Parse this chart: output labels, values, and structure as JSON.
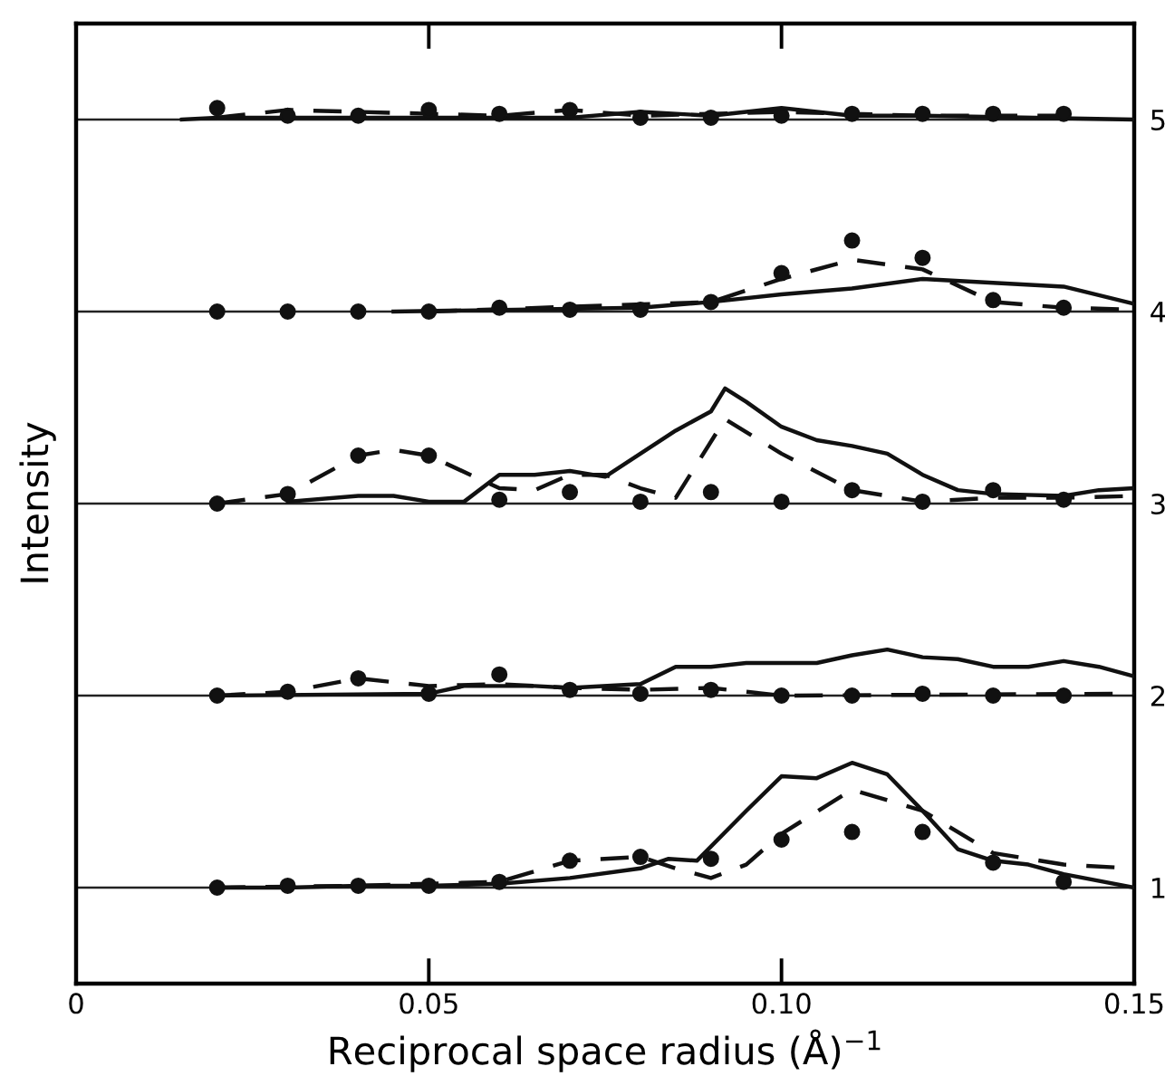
{
  "chart_data": {
    "type": "line",
    "xlabel": "Reciprocal space radius (Å)$^{−1}$",
    "ylabel": "Intensity",
    "xlim": [
      0,
      0.15
    ],
    "xticks": [
      0,
      0.05,
      {
        "value": 0.1,
        "label": "0.10"
      },
      0.15
    ],
    "ylim": [
      0.5,
      5.5
    ],
    "yticks": [
      1,
      2,
      3,
      4,
      5
    ],
    "grid": "y",
    "legend": false,
    "series": [
      {
        "line_style": "solid",
        "color": "#111111",
        "x": [
          0.02,
          0.03,
          0.04,
          0.05,
          0.06,
          0.07,
          0.08,
          0.084,
          0.088,
          0.095,
          0.1,
          0.105,
          0.11,
          0.115,
          0.12,
          0.125,
          0.13,
          0.135,
          0.14,
          0.15
        ],
        "values": [
          1.0,
          1.0,
          1.01,
          1.01,
          1.02,
          1.05,
          1.1,
          1.15,
          1.14,
          1.4,
          1.58,
          1.57,
          1.65,
          1.59,
          1.4,
          1.2,
          1.14,
          1.12,
          1.07,
          1.0
        ]
      },
      {
        "line_style": "dashed",
        "color": "#111111",
        "x": [
          0.02,
          0.04,
          0.06,
          0.07,
          0.08,
          0.085,
          0.09,
          0.095,
          0.1,
          0.11,
          0.12,
          0.13,
          0.14,
          0.15
        ],
        "values": [
          1.0,
          1.01,
          1.03,
          1.14,
          1.16,
          1.1,
          1.05,
          1.12,
          1.28,
          1.51,
          1.4,
          1.18,
          1.12,
          1.1
        ]
      },
      {
        "type": "scatter",
        "marker": "circle",
        "color": "#111111",
        "x": [
          0.02,
          0.03,
          0.04,
          0.05,
          0.06,
          0.07,
          0.08,
          0.09,
          0.1,
          0.11,
          0.12,
          0.13,
          0.14
        ],
        "values": [
          1.0,
          1.01,
          1.01,
          1.01,
          1.03,
          1.14,
          1.16,
          1.15,
          1.25,
          1.29,
          1.29,
          1.13,
          1.03
        ]
      },
      {
        "line_style": "solid",
        "color": "#111111",
        "x": [
          0.02,
          0.05,
          0.055,
          0.065,
          0.07,
          0.08,
          0.085,
          0.09,
          0.095,
          0.105,
          0.11,
          0.115,
          0.12,
          0.125,
          0.13,
          0.135,
          0.14,
          0.145,
          0.15
        ],
        "values": [
          2.0,
          2.01,
          2.05,
          2.05,
          2.04,
          2.06,
          2.15,
          2.15,
          2.17,
          2.17,
          2.21,
          2.24,
          2.2,
          2.19,
          2.15,
          2.15,
          2.18,
          2.15,
          2.1
        ]
      },
      {
        "line_style": "dashed",
        "color": "#111111",
        "x": [
          0.02,
          0.03,
          0.04,
          0.05,
          0.06,
          0.07,
          0.08,
          0.09,
          0.1,
          0.15
        ],
        "values": [
          2.0,
          2.02,
          2.09,
          2.05,
          2.06,
          2.04,
          2.03,
          2.04,
          2.0,
          2.01
        ]
      },
      {
        "type": "scatter",
        "marker": "circle",
        "color": "#111111",
        "x": [
          0.02,
          0.03,
          0.04,
          0.05,
          0.06,
          0.07,
          0.08,
          0.09,
          0.1,
          0.11,
          0.12,
          0.13,
          0.14
        ],
        "values": [
          2.0,
          2.02,
          2.09,
          2.01,
          2.11,
          2.03,
          2.01,
          2.03,
          2.0,
          2.0,
          2.01,
          2.0,
          2.0
        ]
      },
      {
        "line_style": "solid",
        "color": "#111111",
        "x": [
          0.03,
          0.04,
          0.045,
          0.05,
          0.055,
          0.06,
          0.065,
          0.07,
          0.075,
          0.08,
          0.085,
          0.09,
          0.092,
          0.095,
          0.1,
          0.105,
          0.11,
          0.115,
          0.12,
          0.125,
          0.13,
          0.14,
          0.145,
          0.15
        ],
        "values": [
          3.01,
          3.04,
          3.04,
          3.01,
          3.01,
          3.15,
          3.15,
          3.17,
          3.14,
          3.26,
          3.38,
          3.48,
          3.6,
          3.53,
          3.4,
          3.33,
          3.3,
          3.26,
          3.15,
          3.07,
          3.05,
          3.04,
          3.07,
          3.08
        ]
      },
      {
        "line_style": "dashed",
        "color": "#111111",
        "x": [
          0.02,
          0.03,
          0.04,
          0.045,
          0.05,
          0.06,
          0.065,
          0.07,
          0.075,
          0.08,
          0.085,
          0.092,
          0.1,
          0.11,
          0.12,
          0.13,
          0.14,
          0.15
        ],
        "values": [
          3.0,
          3.05,
          3.25,
          3.28,
          3.25,
          3.08,
          3.07,
          3.15,
          3.15,
          3.08,
          3.03,
          3.44,
          3.26,
          3.07,
          3.01,
          3.03,
          3.03,
          3.04
        ]
      },
      {
        "type": "scatter",
        "marker": "circle",
        "color": "#111111",
        "x": [
          0.02,
          0.03,
          0.04,
          0.05,
          0.06,
          0.07,
          0.08,
          0.09,
          0.1,
          0.11,
          0.12,
          0.13,
          0.14
        ],
        "values": [
          3.0,
          3.05,
          3.25,
          3.25,
          3.02,
          3.06,
          3.01,
          3.06,
          3.01,
          3.07,
          3.01,
          3.07,
          3.02
        ]
      },
      {
        "line_style": "solid",
        "color": "#111111",
        "x": [
          0.045,
          0.08,
          0.09,
          0.1,
          0.11,
          0.12,
          0.13,
          0.14,
          0.15
        ],
        "values": [
          4.0,
          4.02,
          4.05,
          4.09,
          4.12,
          4.17,
          4.15,
          4.13,
          4.04
        ]
      },
      {
        "line_style": "dashed",
        "color": "#111111",
        "x": [
          0.05,
          0.09,
          0.1,
          0.11,
          0.12,
          0.13,
          0.14,
          0.15
        ],
        "values": [
          4.0,
          4.05,
          4.17,
          4.27,
          4.22,
          4.05,
          4.02,
          4.01
        ]
      },
      {
        "type": "scatter",
        "marker": "circle",
        "color": "#111111",
        "x": [
          0.02,
          0.03,
          0.04,
          0.05,
          0.06,
          0.07,
          0.08,
          0.09,
          0.1,
          0.11,
          0.12,
          0.13,
          0.14
        ],
        "values": [
          4.0,
          4.0,
          4.0,
          4.0,
          4.02,
          4.01,
          4.01,
          4.05,
          4.2,
          4.37,
          4.28,
          4.06,
          4.02
        ]
      },
      {
        "line_style": "solid",
        "color": "#111111",
        "x": [
          0.015,
          0.02,
          0.05,
          0.07,
          0.08,
          0.09,
          0.1,
          0.11,
          0.12,
          0.15
        ],
        "values": [
          5.0,
          5.01,
          5.01,
          5.01,
          5.04,
          5.02,
          5.06,
          5.02,
          5.02,
          5.0
        ]
      },
      {
        "line_style": "dashed",
        "color": "#111111",
        "x": [
          0.02,
          0.03,
          0.04,
          0.05,
          0.06,
          0.07,
          0.08,
          0.09,
          0.1,
          0.11,
          0.12,
          0.14
        ],
        "values": [
          5.01,
          5.05,
          5.04,
          5.03,
          5.02,
          5.05,
          5.02,
          5.03,
          5.04,
          5.03,
          5.02,
          5.02
        ]
      },
      {
        "type": "scatter",
        "marker": "circle",
        "color": "#111111",
        "x": [
          0.02,
          0.03,
          0.04,
          0.05,
          0.06,
          0.07,
          0.08,
          0.09,
          0.1,
          0.11,
          0.12,
          0.13,
          0.14
        ],
        "values": [
          5.06,
          5.02,
          5.02,
          5.05,
          5.03,
          5.05,
          5.01,
          5.01,
          5.02,
          5.03,
          5.03,
          5.03,
          5.03
        ]
      }
    ]
  }
}
